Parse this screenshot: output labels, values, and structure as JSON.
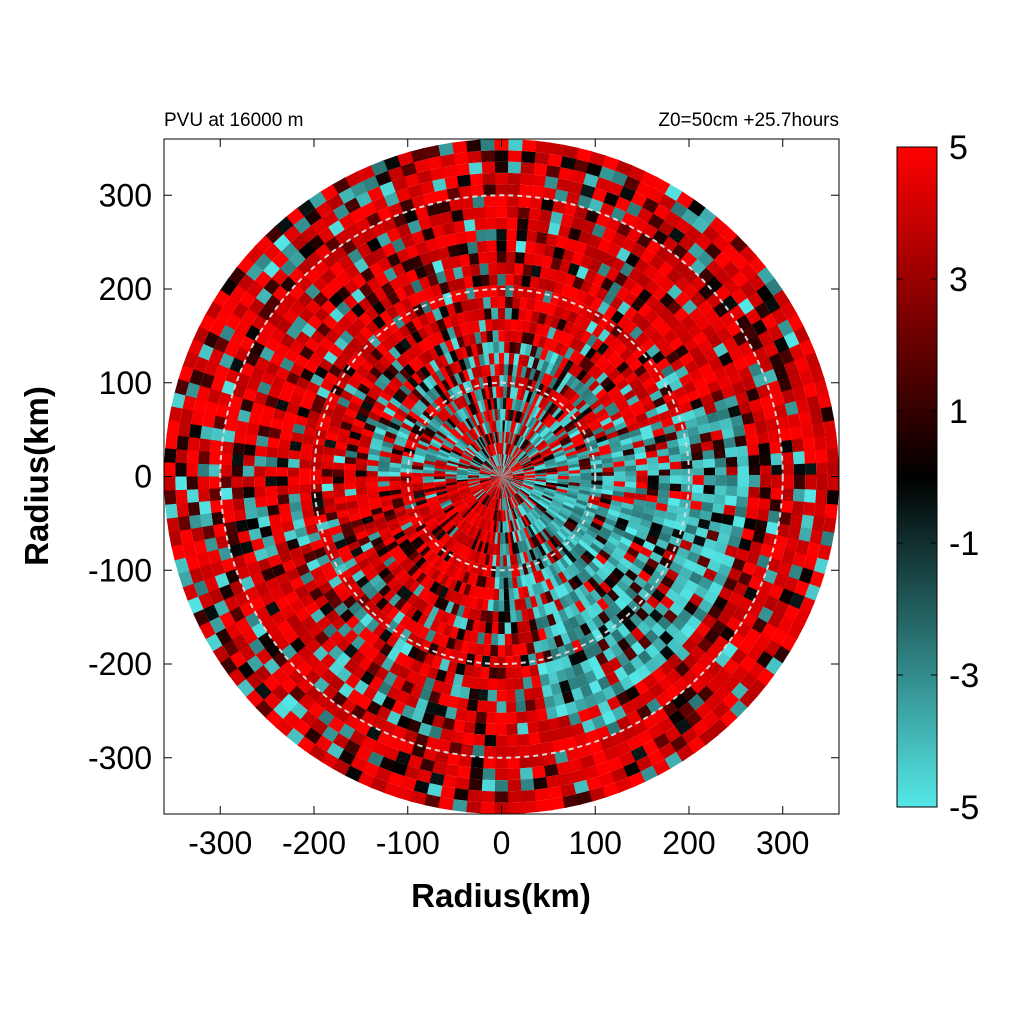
{
  "header": {
    "left": "PVU at 16000 m",
    "right": "Z0=50cm  +25.7hours"
  },
  "chart_data": {
    "type": "heatmap",
    "projection": "polar field on cartesian axes",
    "xlabel": "Radius(km)",
    "ylabel": "Radius(km)",
    "xlim": [
      -360,
      360
    ],
    "ylim": [
      -360,
      360
    ],
    "x_ticks": [
      -300,
      -200,
      -100,
      0,
      100,
      200,
      300
    ],
    "y_ticks": [
      300,
      200,
      100,
      0,
      -100,
      -200,
      -300
    ],
    "x_tick_labels": [
      "-300",
      "-200",
      "-100",
      "0",
      "100",
      "200",
      "300"
    ],
    "y_tick_labels": [
      "300",
      "200",
      "100",
      "0",
      "-100",
      "-200",
      "-300"
    ],
    "domain_radius": 360,
    "reference_circles": [
      100,
      200,
      300
    ],
    "value_range": [
      -5,
      5
    ],
    "colorbar": {
      "ticks": [
        5,
        3,
        1,
        -1,
        -3,
        -5
      ],
      "tick_labels": [
        "5",
        "3",
        "1",
        "-1",
        "-3",
        "-5"
      ],
      "colors": [
        {
          "value": -5,
          "color": "#55e8e8"
        },
        {
          "value": 0,
          "color": "#000000"
        },
        {
          "value": 5,
          "color": "#ff0000"
        }
      ]
    },
    "field_description": "Mostly positive PVU (red, ~5) with negative (cyan, ~-5) patches concentrated in the core and the south-east quadrant between 0 and 250 km"
  }
}
